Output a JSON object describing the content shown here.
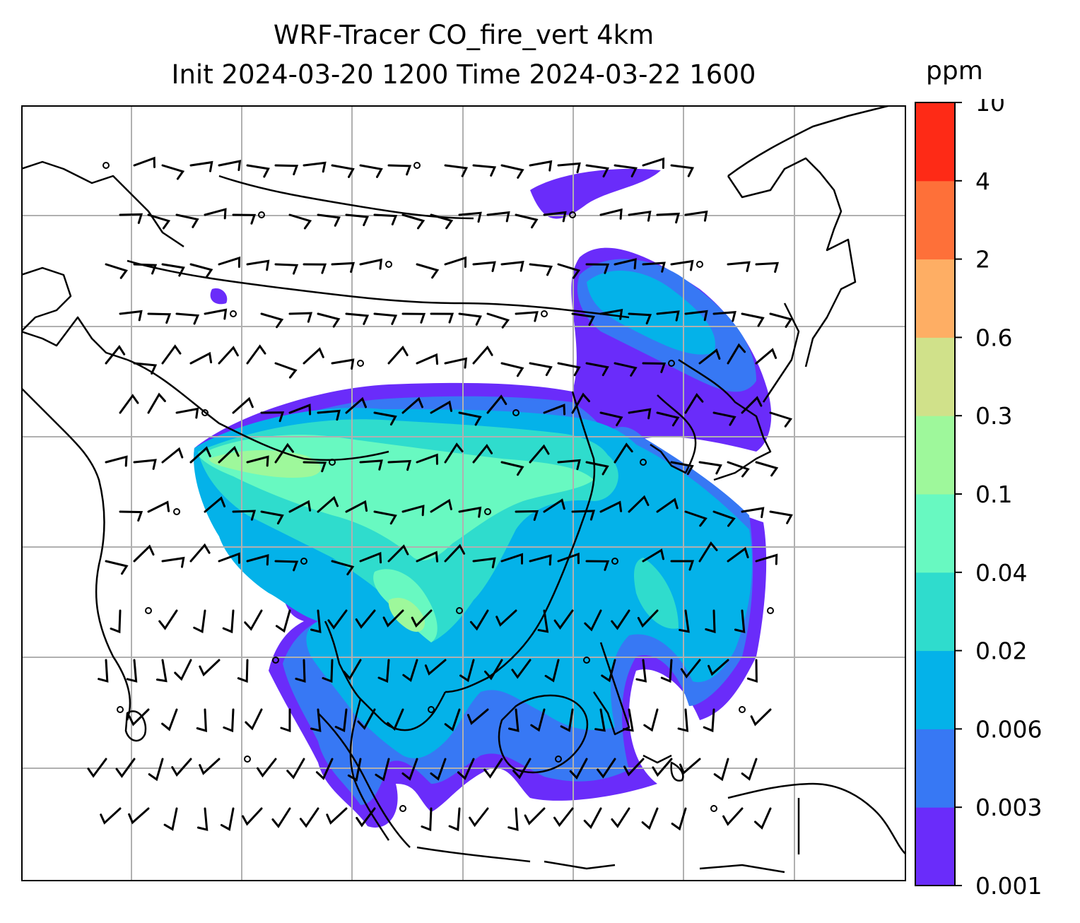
{
  "title": {
    "line1": "WRF-Tracer CO_fire_vert 4km",
    "line2": "Init 2024-03-20 1200 Time 2024-03-22 1600"
  },
  "colorbar": {
    "unit": "ppm",
    "ticks": [
      "0.001",
      "0.003",
      "0.006",
      "0.02",
      "0.04",
      "0.1",
      "0.3",
      "0.6",
      "2",
      "4",
      "10"
    ],
    "colors": [
      "#6a2cfa",
      "#3778f4",
      "#04b2e9",
      "#2fdccd",
      "#68f9c1",
      "#9ef89b",
      "#d0e18a",
      "#feae64",
      "#fe7039",
      "#fe2a16"
    ]
  },
  "map": {
    "type": "contourf + wind barbs",
    "variable": "CO_fire_vert",
    "grid": true,
    "coastline_color": "#000000",
    "gridline_color": "#b0b0b0"
  }
}
